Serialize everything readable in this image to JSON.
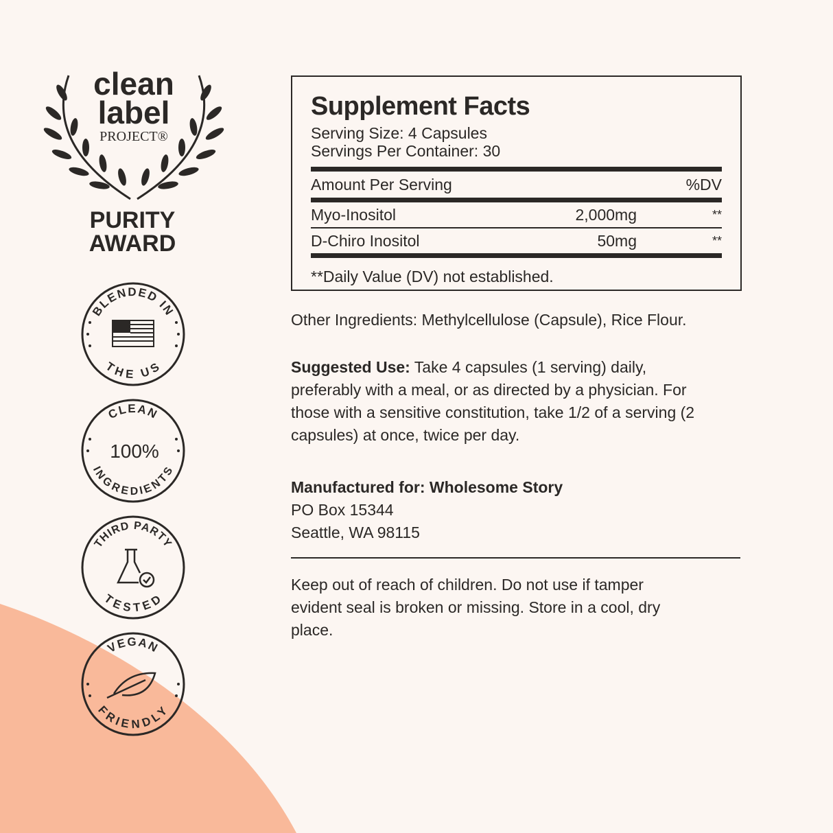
{
  "colors": {
    "background": "#fcf6f2",
    "accent": "#f9b99a",
    "ink": "#2b2826"
  },
  "logo": {
    "line1": "clean",
    "line2": "label",
    "line3": "PROJECT®",
    "award1": "PURITY",
    "award2": "AWARD"
  },
  "badges": [
    {
      "top": "BLENDED IN",
      "bottom": "THE US",
      "icon": "us-flag-icon"
    },
    {
      "top": "CLEAN",
      "center": "100%",
      "bottom": "INGREDIENTS"
    },
    {
      "top": "THIRD PARTY",
      "bottom": "TESTED",
      "icon": "flask-check-icon"
    },
    {
      "top": "VEGAN",
      "bottom": "FRIENDLY",
      "icon": "leaf-icon"
    }
  ],
  "facts": {
    "title": "Supplement Facts",
    "serving_size": "Serving Size: 4 Capsules",
    "servings_per_container": "Servings Per Container: 30",
    "amount_header": "Amount Per Serving",
    "dv_header": "%DV",
    "rows": [
      {
        "name": "Myo-Inositol",
        "amount": "2,000mg",
        "dv": "**"
      },
      {
        "name": "D-Chiro Inositol",
        "amount": "50mg",
        "dv": "**"
      }
    ],
    "footnote": "**Daily Value (DV) not established."
  },
  "other_ingredients": "Other Ingredients: Methylcellulose (Capsule), Rice Flour.",
  "suggested_use": {
    "label": "Suggested Use:",
    "text": " Take 4 capsules (1 serving) daily, preferably with a meal, or as directed by a physician. For those with a sensitive constitution, take 1/2 of a serving (2 capsules) at once, twice per day."
  },
  "manufacturer": {
    "label": "Manufactured for: Wholesome Story",
    "address1": "PO Box 15344",
    "address2": "Seattle, WA 98115"
  },
  "warning": "Keep out of reach of children. Do not use if tamper evident seal is broken or missing. Store in a cool, dry place."
}
